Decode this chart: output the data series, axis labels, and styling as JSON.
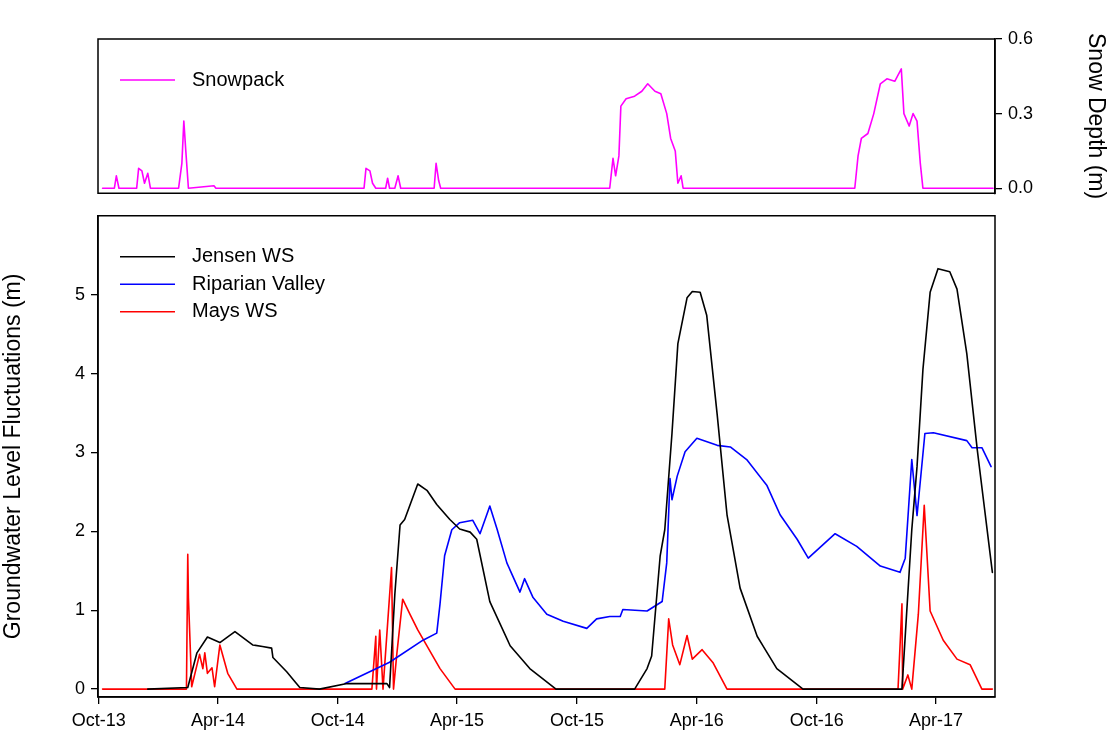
{
  "chart_data": [
    {
      "type": "line",
      "y2label": "Snow Depth (m)",
      "xlim": [
        "2013-09-30",
        "2017-06-30"
      ],
      "y2lim": [
        -0.02,
        0.6
      ],
      "y2ticks": [
        {
          "value": 0,
          "label": "0.0"
        },
        {
          "value": 0.3,
          "label": "0.3"
        },
        {
          "value": 0.6,
          "label": "0.6"
        }
      ],
      "tick_labels": "y2",
      "grid": false,
      "legend": "top left",
      "marker": "none",
      "line_style": "solid",
      "series": [
        {
          "name": "Snowpack",
          "color": "#ff00ff",
          "axis": "y2",
          "x": [
            "2013-10-07",
            "2013-10-25",
            "2013-10-28",
            "2013-11-01",
            "2013-11-28",
            "2013-12-01",
            "2013-12-06",
            "2013-12-10",
            "2013-12-15",
            "2013-12-19",
            "2014-01-31",
            "2014-02-05",
            "2014-02-08",
            "2014-02-11",
            "2014-02-15",
            "2014-03-26",
            "2014-03-29",
            "2014-11-10",
            "2014-11-13",
            "2014-11-19",
            "2014-11-23",
            "2014-11-28",
            "2014-12-13",
            "2014-12-16",
            "2014-12-19",
            "2014-12-27",
            "2015-01-01",
            "2015-01-05",
            "2015-02-25",
            "2015-02-28",
            "2015-03-04",
            "2015-03-07",
            "2015-11-20",
            "2015-11-25",
            "2015-11-29",
            "2015-12-04",
            "2015-12-07",
            "2015-12-15",
            "2015-12-28",
            "2016-01-08",
            "2016-01-17",
            "2016-01-28",
            "2016-02-06",
            "2016-02-15",
            "2016-02-21",
            "2016-02-28",
            "2016-03-03",
            "2016-03-08",
            "2016-03-11",
            "2016-11-28",
            "2016-12-03",
            "2016-12-08",
            "2016-12-18",
            "2016-12-27",
            "2017-01-06",
            "2017-01-16",
            "2017-01-28",
            "2017-02-07",
            "2017-02-11",
            "2017-02-19",
            "2017-02-25",
            "2017-03-03",
            "2017-03-08",
            "2017-03-12",
            "2017-06-27"
          ],
          "values": [
            0,
            0,
            0.05,
            0,
            0,
            0.08,
            0.07,
            0.02,
            0.06,
            0,
            0,
            0.1,
            0.27,
            0.15,
            0,
            0.01,
            0,
            0,
            0.08,
            0.07,
            0.02,
            0,
            0,
            0.04,
            0,
            0,
            0.05,
            0,
            0,
            0.1,
            0.03,
            0,
            0,
            0.12,
            0.05,
            0.13,
            0.33,
            0.36,
            0.37,
            0.39,
            0.42,
            0.39,
            0.38,
            0.3,
            0.2,
            0.15,
            0.02,
            0.05,
            0,
            0,
            0.13,
            0.2,
            0.22,
            0.3,
            0.42,
            0.44,
            0.43,
            0.48,
            0.3,
            0.25,
            0.3,
            0.27,
            0.1,
            0,
            0
          ]
        }
      ]
    },
    {
      "type": "line",
      "ylabel": "Groundwater Level Fluctuations (m)",
      "xlim": [
        "2013-09-30",
        "2017-06-30"
      ],
      "ylim": [
        -0.1,
        6
      ],
      "yticks": [
        0,
        1,
        2,
        3,
        4,
        5
      ],
      "xticks": [
        {
          "value": "2013-10-01",
          "label": "Oct-13"
        },
        {
          "value": "2014-04-01",
          "label": "Apr-14"
        },
        {
          "value": "2014-10-01",
          "label": "Oct-14"
        },
        {
          "value": "2015-04-01",
          "label": "Apr-15"
        },
        {
          "value": "2015-10-01",
          "label": "Oct-15"
        },
        {
          "value": "2016-04-01",
          "label": "Apr-16"
        },
        {
          "value": "2016-10-01",
          "label": "Oct-16"
        },
        {
          "value": "2017-04-01",
          "label": "Apr-17"
        }
      ],
      "grid": false,
      "legend": "top left",
      "marker": "none",
      "line_style": "solid",
      "series": [
        {
          "name": "Jensen WS",
          "color": "#000000",
          "x": [
            "2013-12-15",
            "2014-02-14",
            "2014-02-28",
            "2014-03-16",
            "2014-04-04",
            "2014-04-27",
            "2014-05-24",
            "2014-06-08",
            "2014-06-22",
            "2014-06-24",
            "2014-07-15",
            "2014-07-27",
            "2014-08-04",
            "2014-09-03",
            "2014-10-15",
            "2014-12-15",
            "2014-12-19",
            "2014-12-27",
            "2015-01-04",
            "2015-01-11",
            "2015-01-31",
            "2015-02-14",
            "2015-03-01",
            "2015-03-21",
            "2015-04-05",
            "2015-04-21",
            "2015-05-01",
            "2015-05-21",
            "2015-06-21",
            "2015-07-21",
            "2015-08-30",
            "2015-12-28",
            "2016-01-16",
            "2016-01-23",
            "2016-02-05",
            "2016-02-12",
            "2016-02-23",
            "2016-03-03",
            "2016-03-17",
            "2016-03-25",
            "2016-04-06",
            "2016-04-16",
            "2016-05-02",
            "2016-05-17",
            "2016-06-06",
            "2016-07-02",
            "2016-08-01",
            "2016-09-10",
            "2017-02-08",
            "2017-02-23",
            "2017-03-03",
            "2017-03-12",
            "2017-03-23",
            "2017-04-04",
            "2017-04-22",
            "2017-05-03",
            "2017-05-18",
            "2017-06-03",
            "2017-06-26"
          ],
          "values": [
            0,
            0.02,
            0.46,
            0.66,
            0.59,
            0.73,
            0.56,
            0.54,
            0.52,
            0.4,
            0.22,
            0.1,
            0.02,
            0,
            0.07,
            0.07,
            0.02,
            1.2,
            2.08,
            2.15,
            2.6,
            2.52,
            2.34,
            2.15,
            2.03,
            1.99,
            1.9,
            1.11,
            0.55,
            0.26,
            0,
            0,
            0.26,
            0.42,
            1.69,
            2.02,
            3.24,
            4.38,
            4.96,
            5.04,
            5.03,
            4.74,
            3.48,
            2.21,
            1.28,
            0.67,
            0.26,
            0,
            0,
            2.02,
            2.82,
            4.05,
            5.03,
            5.33,
            5.29,
            5.07,
            4.25,
            3.03,
            1.48
          ]
        },
        {
          "name": "Riparian Valley",
          "color": "#0000ff",
          "x": [
            "2014-10-12",
            "2014-12-19",
            "2015-02-08",
            "2015-03-01",
            "2015-03-06",
            "2015-03-13",
            "2015-03-24",
            "2015-04-05",
            "2015-04-25",
            "2015-05-06",
            "2015-05-21",
            "2015-06-01",
            "2015-06-16",
            "2015-07-06",
            "2015-07-13",
            "2015-07-26",
            "2015-08-16",
            "2015-09-10",
            "2015-10-16",
            "2015-10-31",
            "2015-11-20",
            "2015-12-06",
            "2015-12-10",
            "2016-01-16",
            "2016-02-08",
            "2016-02-15",
            "2016-02-20",
            "2016-02-23",
            "2016-03-02",
            "2016-03-14",
            "2016-04-01",
            "2016-05-02",
            "2016-05-22",
            "2016-06-16",
            "2016-07-17",
            "2016-08-06",
            "2016-09-01",
            "2016-09-18",
            "2016-10-29",
            "2016-12-01",
            "2017-01-06",
            "2017-02-05",
            "2017-02-13",
            "2017-02-23",
            "2017-03-03",
            "2017-03-15",
            "2017-03-28",
            "2017-05-18",
            "2017-05-26",
            "2017-06-10",
            "2017-06-24"
          ],
          "values": [
            0.07,
            0.34,
            0.62,
            0.71,
            1.08,
            1.69,
            2.02,
            2.11,
            2.14,
            1.97,
            2.32,
            2.03,
            1.6,
            1.23,
            1.4,
            1.16,
            0.95,
            0.86,
            0.77,
            0.89,
            0.92,
            0.92,
            1.01,
            0.99,
            1.11,
            1.6,
            2.67,
            2.4,
            2.7,
            3.01,
            3.18,
            3.09,
            3.07,
            2.91,
            2.58,
            2.21,
            1.9,
            1.66,
            1.97,
            1.81,
            1.56,
            1.48,
            1.66,
            2.91,
            2.2,
            3.24,
            3.25,
            3.15,
            3.06,
            3.06,
            2.82
          ]
        },
        {
          "name": "Mays WS",
          "color": "#ff0000",
          "x": [
            "2013-10-07",
            "2014-02-12",
            "2014-02-14",
            "2014-02-15",
            "2014-02-20",
            "2014-03-04",
            "2014-03-09",
            "2014-03-12",
            "2014-03-16",
            "2014-03-23",
            "2014-03-27",
            "2014-04-04",
            "2014-04-16",
            "2014-04-30",
            "2014-11-22",
            "2014-11-28",
            "2014-11-29",
            "2014-12-04",
            "2014-12-09",
            "2014-12-22",
            "2014-12-25",
            "2014-12-30",
            "2015-01-08",
            "2015-01-19",
            "2015-01-31",
            "2015-03-06",
            "2015-03-29",
            "2016-02-12",
            "2016-02-18",
            "2016-02-24",
            "2016-03-06",
            "2016-03-17",
            "2016-03-25",
            "2016-04-09",
            "2016-04-26",
            "2016-05-17",
            "2017-02-02",
            "2017-02-08",
            "2017-02-09",
            "2017-02-17",
            "2017-02-23",
            "2017-03-05",
            "2017-03-14",
            "2017-03-23",
            "2017-04-12",
            "2017-05-03",
            "2017-05-23",
            "2017-06-10",
            "2017-06-26"
          ],
          "values": [
            0,
            0,
            1.71,
            1.16,
            0.03,
            0.44,
            0.26,
            0.46,
            0.2,
            0.27,
            0.03,
            0.56,
            0.2,
            0,
            0,
            0.67,
            0,
            0.75,
            0,
            1.54,
            0,
            0.44,
            1.14,
            0.95,
            0.75,
            0.26,
            0,
            0,
            0.89,
            0.56,
            0.31,
            0.68,
            0.38,
            0.5,
            0.33,
            0,
            0,
            1.08,
            0,
            0.18,
            0,
            0.95,
            2.33,
            0.99,
            0.62,
            0.38,
            0.31,
            0,
            0
          ]
        }
      ]
    }
  ]
}
